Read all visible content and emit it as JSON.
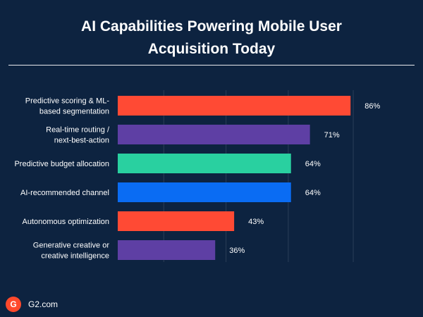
{
  "title_lines": [
    "AI Capabilities Powering Mobile User",
    "Acquisition Today"
  ],
  "footer": {
    "logo_glyph": "G",
    "source": "G2.com"
  },
  "colors": {
    "background": "#0d2340",
    "red": "#ff4a34",
    "purple": "#5e3fa4",
    "teal": "#29d0a0",
    "blue": "#0a6cf3"
  },
  "chart_data": {
    "type": "bar",
    "orientation": "horizontal",
    "categories": [
      [
        "Predictive scoring & ML-",
        "based segmentation"
      ],
      [
        "Real-time routing /",
        "next-best-action"
      ],
      [
        "Predictive budget allocation"
      ],
      [
        "AI-recommended channel"
      ],
      [
        "Autonomous optimization"
      ],
      [
        "Generative creative or",
        "creative intelligence"
      ]
    ],
    "values": [
      86,
      71,
      64,
      64,
      43,
      36
    ],
    "value_labels": [
      "86%",
      "71%",
      "64%",
      "64%",
      "43%",
      "36%"
    ],
    "bar_colors": [
      "#ff4a34",
      "#5e3fa4",
      "#29d0a0",
      "#0a6cf3",
      "#ff4a34",
      "#5e3fa4"
    ],
    "xlim": [
      0,
      100
    ],
    "grid": true
  }
}
